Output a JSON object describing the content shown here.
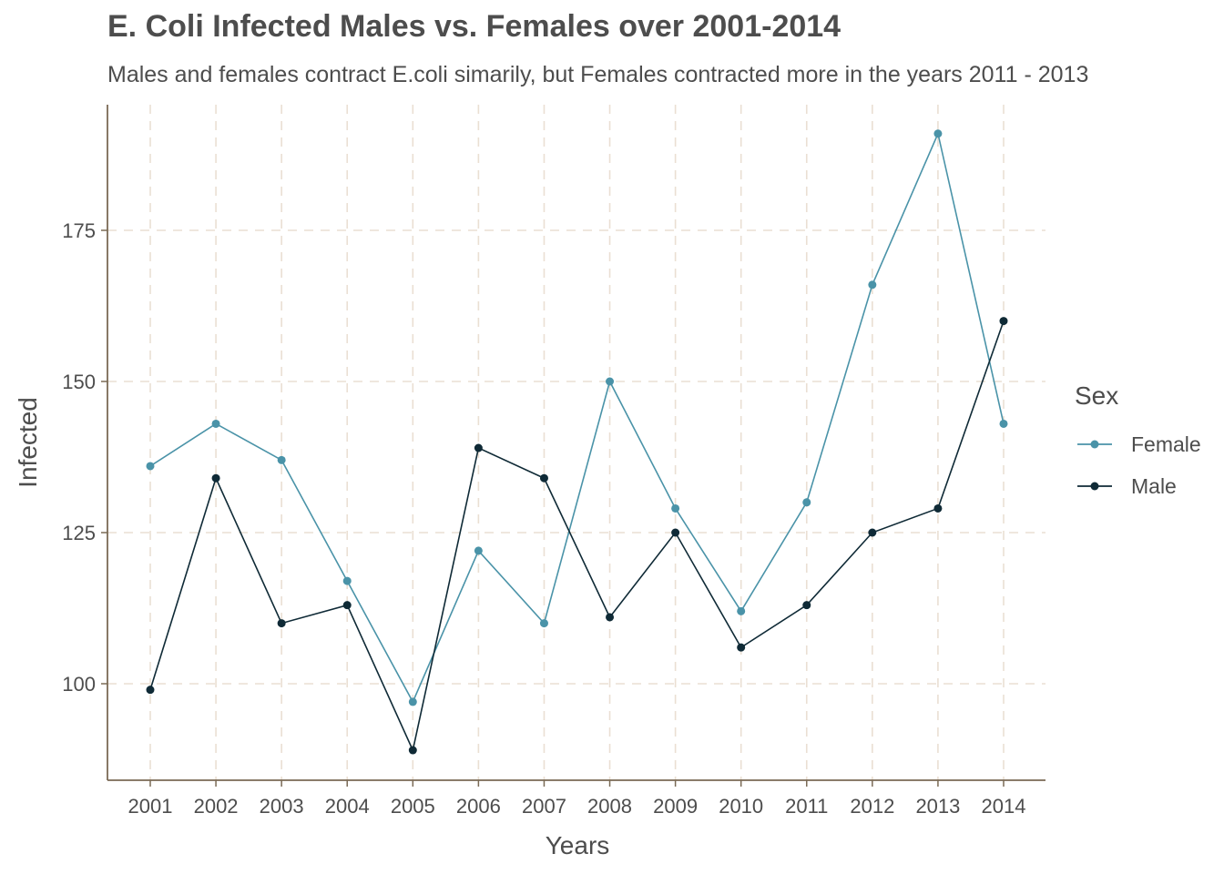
{
  "chart_data": {
    "type": "line",
    "title": "E. Coli Infected Males vs. Females over 2001-2014",
    "subtitle": "Males and females contract E.coli simarily, but Females contracted more in the years 2011 - 2013",
    "xlabel": "Years",
    "ylabel": "Infected",
    "x": [
      "2001",
      "2002",
      "2003",
      "2004",
      "2005",
      "2006",
      "2007",
      "2008",
      "2009",
      "2010",
      "2011",
      "2012",
      "2013",
      "2014"
    ],
    "yticks": [
      100,
      125,
      150,
      175
    ],
    "ylim": [
      85,
      198
    ],
    "grid": true,
    "legend": {
      "title": "Sex",
      "placement": "right"
    },
    "series": [
      {
        "name": "Female",
        "color": "#4a93a8",
        "values": [
          136,
          143,
          137,
          117,
          97,
          122,
          110,
          150,
          129,
          112,
          130,
          166,
          191,
          143
        ]
      },
      {
        "name": "Male",
        "color": "#0f2a36",
        "values": [
          99,
          134,
          110,
          113,
          89,
          139,
          134,
          111,
          125,
          106,
          113,
          125,
          129,
          160
        ]
      }
    ],
    "colors": {
      "grid": "#eadfd3",
      "axis": "#7a6a55",
      "text": "#4d4d4d"
    }
  }
}
